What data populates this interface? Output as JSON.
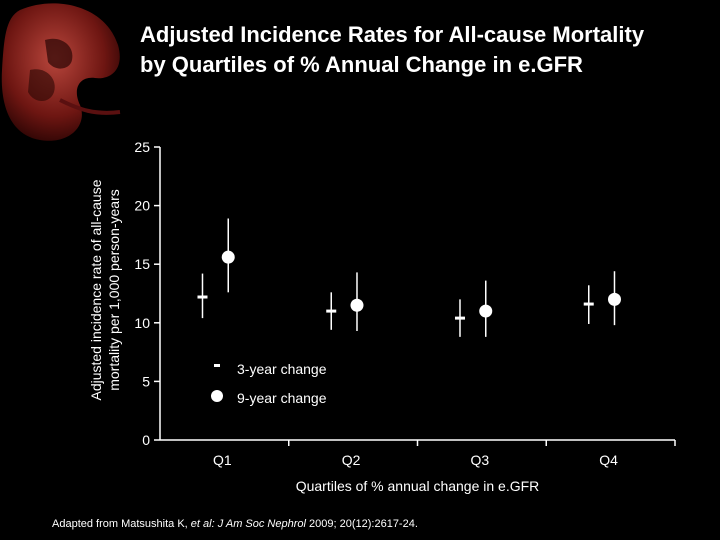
{
  "title_line1": "Adjusted Incidence Rates for All-cause Mortality",
  "title_line2": "by Quartiles of % Annual Change in e.GFR",
  "footer": {
    "prefix": "Adapted from Matsushita K, ",
    "etal": "et al:",
    "journal": "J Am Soc Nephrol",
    "suffix": " 2009; 20(12):2617-24."
  },
  "colors": {
    "background": "#000000",
    "text": "#ffffff",
    "marker": "#ffffff",
    "kidney": "#7a1a1a"
  },
  "chart_data": {
    "type": "scatter",
    "title": "Adjusted Incidence Rates for All-cause Mortality by Quartiles of % Annual Change in e.GFR",
    "ylabel_line1": "Adjusted incidence rate of all-cause",
    "ylabel_line2": "mortality per 1,000 person-years",
    "xlabel": "Quartiles of % annual change in e.GFR",
    "categories": [
      "Q1",
      "Q2",
      "Q3",
      "Q4"
    ],
    "ylim": [
      0,
      25
    ],
    "yticks": [
      0,
      5,
      10,
      15,
      20,
      25
    ],
    "grid": false,
    "legend_position": "bottom-left",
    "series": [
      {
        "name": "3-year change",
        "marker": "dash",
        "values": [
          12.2,
          11.0,
          10.4,
          11.6
        ],
        "lower": [
          10.4,
          9.4,
          8.8,
          9.9
        ],
        "upper": [
          14.2,
          12.6,
          12.0,
          13.2
        ]
      },
      {
        "name": "9-year change",
        "marker": "circle",
        "values": [
          15.6,
          11.5,
          11.0,
          12.0
        ],
        "lower": [
          12.6,
          9.3,
          8.8,
          9.8
        ],
        "upper": [
          18.9,
          14.3,
          13.6,
          14.4
        ]
      }
    ]
  }
}
